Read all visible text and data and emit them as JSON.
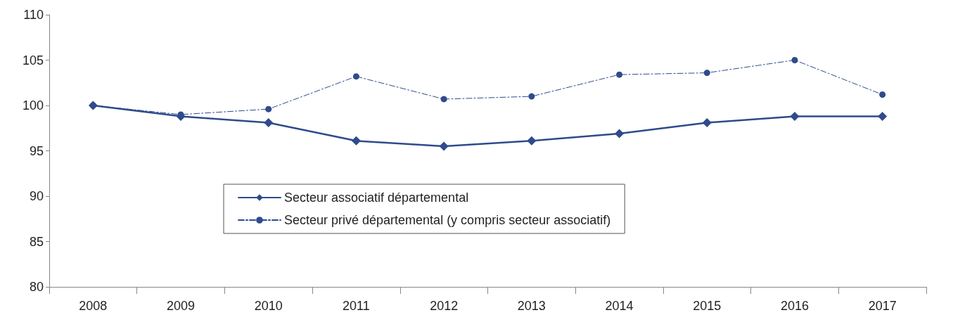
{
  "chart_data": {
    "type": "line",
    "categories": [
      "2008",
      "2009",
      "2010",
      "2011",
      "2012",
      "2013",
      "2014",
      "2015",
      "2016",
      "2017"
    ],
    "series": [
      {
        "name": "Secteur associatif départemental",
        "color": "#2f4b8c",
        "marker": "diamond",
        "line_style": "solid",
        "values": [
          100,
          98.8,
          98.1,
          96.1,
          95.5,
          96.1,
          96.9,
          98.1,
          98.8,
          98.8
        ]
      },
      {
        "name": "Secteur privé départemental (y compris secteur associatif)",
        "color": "#2f4b8c",
        "marker": "circle",
        "line_style": "dashed",
        "values": [
          100,
          99.0,
          99.6,
          103.2,
          100.7,
          101.0,
          103.4,
          103.6,
          105.0,
          101.2
        ]
      }
    ],
    "ylim": [
      80,
      110
    ],
    "yticks": [
      80,
      85,
      90,
      95,
      100,
      105,
      110
    ],
    "grid": false,
    "legend": "center"
  }
}
